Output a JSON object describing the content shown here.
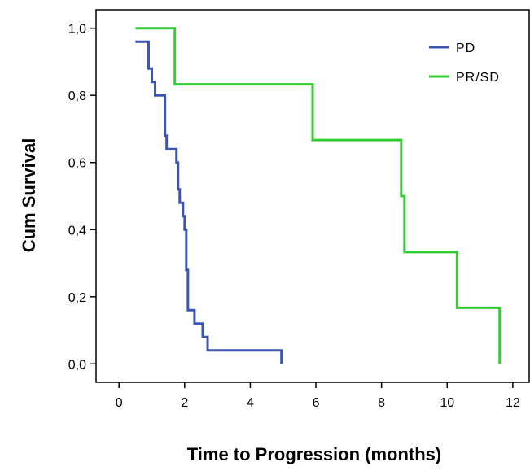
{
  "chart_data": {
    "type": "line",
    "xlabel": "Time to Progression (months)",
    "ylabel": "Cum Survival",
    "xlim": [
      -0.7,
      12.5
    ],
    "ylim": [
      -0.055,
      1.055
    ],
    "x_ticks": [
      0,
      2,
      4,
      6,
      8,
      10,
      12
    ],
    "x_tick_labels": [
      "0",
      "2",
      "4",
      "6",
      "8",
      "10",
      "12"
    ],
    "y_ticks": [
      0,
      0.2,
      0.4,
      0.6,
      0.8,
      1.0
    ],
    "y_tick_labels": [
      "0,0",
      "0,2",
      "0,4",
      "0,6",
      "0,8",
      "1,0"
    ],
    "grid": false,
    "legend_position": "top-right",
    "step": true,
    "series": [
      {
        "name": "PD",
        "color": "#3a55b4",
        "x": [
          0.5,
          0.9,
          1.0,
          1.1,
          1.2,
          1.4,
          1.45,
          1.5,
          1.75,
          1.8,
          1.85,
          1.95,
          2.0,
          2.05,
          2.1,
          2.15,
          2.3,
          2.55,
          2.7,
          4.95
        ],
        "y": [
          0.96,
          0.88,
          0.84,
          0.8,
          0.8,
          0.68,
          0.64,
          0.64,
          0.6,
          0.52,
          0.48,
          0.44,
          0.4,
          0.28,
          0.16,
          0.16,
          0.12,
          0.08,
          0.04,
          0.0
        ]
      },
      {
        "name": "PR/SD",
        "color": "#33cc33",
        "x": [
          0.5,
          1.7,
          5.9,
          8.6,
          8.7,
          10.3,
          11.6
        ],
        "y": [
          1.0,
          0.833,
          0.667,
          0.5,
          0.333,
          0.167,
          0.0
        ]
      }
    ]
  }
}
